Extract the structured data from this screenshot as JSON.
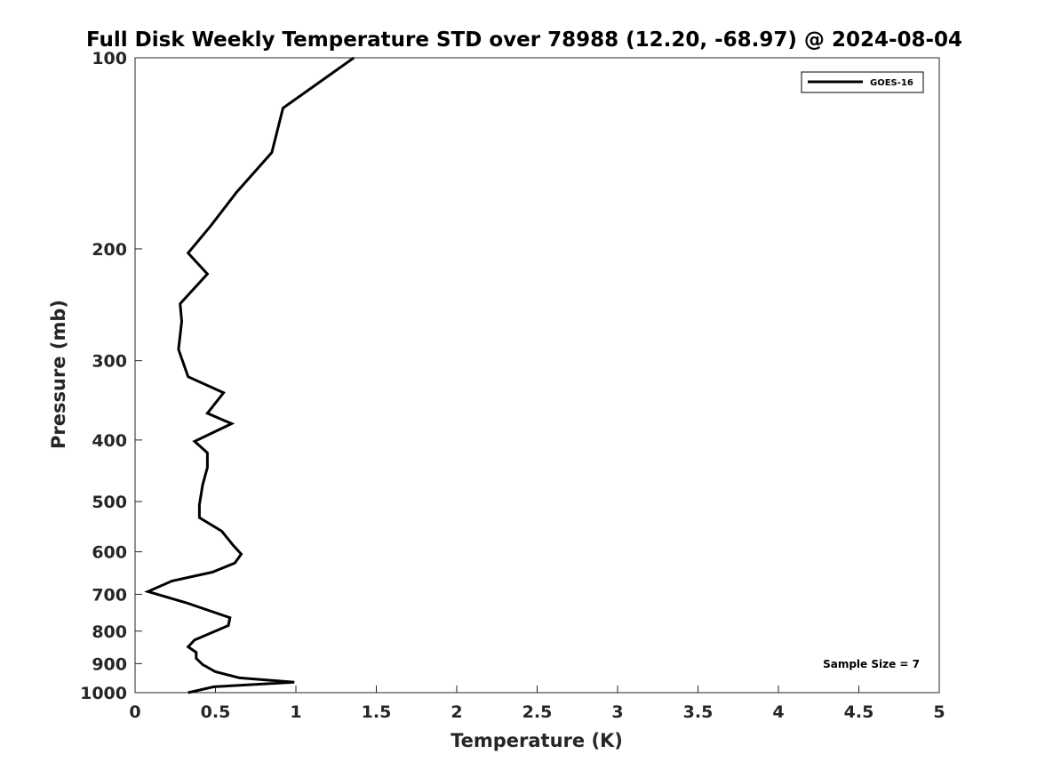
{
  "chart_data": {
    "type": "line",
    "title": "Full Disk Weekly Temperature STD over 78988 (12.20, -68.97) @ 2024-08-04",
    "xlabel": "Temperature (K)",
    "ylabel": "Pressure (mb)",
    "xlim": [
      0,
      5
    ],
    "ylim": [
      100,
      1000
    ],
    "yscale": "log",
    "y_reversed": true,
    "xticks": [
      "0",
      "0.5",
      "1",
      "1.5",
      "2",
      "2.5",
      "3",
      "3.5",
      "4",
      "4.5",
      "5"
    ],
    "xtick_values": [
      0,
      0.5,
      1,
      1.5,
      2,
      2.5,
      3,
      3.5,
      4,
      4.5,
      5
    ],
    "yticks": [
      "100",
      "200",
      "300",
      "400",
      "500",
      "600",
      "700",
      "800",
      "900",
      "1000"
    ],
    "ytick_values": [
      100,
      200,
      300,
      400,
      500,
      600,
      700,
      800,
      900,
      1000
    ],
    "grid": false,
    "legend": {
      "position": "top-right"
    },
    "annotation": "Sample Size = 7",
    "series": [
      {
        "name": "GOES-16",
        "color": "#000000",
        "x": [
          1.36,
          0.92,
          0.85,
          0.63,
          0.47,
          0.33,
          0.45,
          0.28,
          0.29,
          0.27,
          0.33,
          0.55,
          0.45,
          0.6,
          0.37,
          0.45,
          0.45,
          0.42,
          0.4,
          0.4,
          0.54,
          0.61,
          0.66,
          0.62,
          0.48,
          0.23,
          0.08,
          0.32,
          0.59,
          0.58,
          0.37,
          0.33,
          0.38,
          0.38,
          0.42,
          0.5,
          0.65,
          0.99,
          0.49,
          0.33
        ],
        "y": [
          100,
          120,
          141,
          163,
          184,
          203,
          219,
          244,
          260,
          288,
          318,
          337,
          363,
          377,
          402,
          419,
          442,
          471,
          506,
          530,
          557,
          586,
          605,
          625,
          646,
          667,
          693,
          722,
          762,
          784,
          826,
          847,
          864,
          883,
          903,
          927,
          948,
          963,
          979,
          1000
        ]
      }
    ]
  }
}
